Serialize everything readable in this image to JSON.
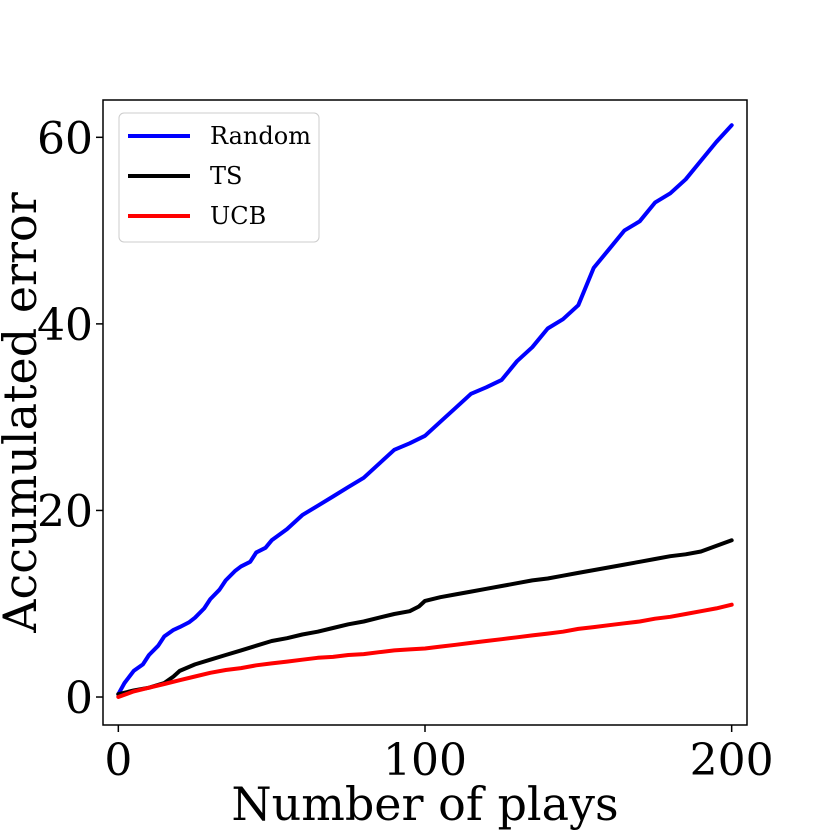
{
  "chart_data": {
    "type": "line",
    "xlabel": "Number of plays",
    "ylabel": "Accumulated error",
    "xlim": [
      -5,
      205
    ],
    "ylim": [
      -3,
      64
    ],
    "xticks": [
      0,
      100,
      200
    ],
    "yticks": [
      0,
      20,
      40,
      60
    ],
    "grid": false,
    "legend_position": "top-left",
    "series": [
      {
        "name": "Random",
        "color": "#0000ff",
        "x": [
          0,
          2,
          5,
          8,
          10,
          13,
          15,
          18,
          20,
          23,
          25,
          28,
          30,
          33,
          35,
          38,
          40,
          43,
          45,
          48,
          50,
          55,
          60,
          65,
          70,
          75,
          80,
          85,
          90,
          95,
          100,
          105,
          110,
          115,
          120,
          125,
          130,
          135,
          140,
          145,
          150,
          155,
          160,
          165,
          170,
          175,
          180,
          185,
          190,
          195,
          200
        ],
        "y": [
          0.3,
          1.5,
          2.8,
          3.5,
          4.5,
          5.5,
          6.5,
          7.2,
          7.5,
          8.0,
          8.5,
          9.5,
          10.5,
          11.5,
          12.5,
          13.5,
          14.0,
          14.5,
          15.5,
          16.0,
          16.8,
          18.0,
          19.5,
          20.5,
          21.5,
          22.5,
          23.5,
          25.0,
          26.5,
          27.2,
          28.0,
          29.5,
          31.0,
          32.5,
          33.2,
          34.0,
          36.0,
          37.5,
          39.5,
          40.5,
          42.0,
          46.0,
          48.0,
          50.0,
          51.0,
          53.0,
          54.0,
          55.5,
          57.5,
          59.5,
          61.3
        ]
      },
      {
        "name": "TS",
        "color": "#000000",
        "x": [
          0,
          5,
          10,
          15,
          18,
          20,
          25,
          30,
          35,
          40,
          45,
          50,
          55,
          60,
          65,
          70,
          75,
          80,
          85,
          90,
          95,
          98,
          100,
          105,
          110,
          115,
          120,
          125,
          130,
          135,
          140,
          145,
          150,
          155,
          160,
          165,
          170,
          175,
          180,
          185,
          190,
          195,
          200
        ],
        "y": [
          0.3,
          0.7,
          1.0,
          1.5,
          2.2,
          2.8,
          3.5,
          4.0,
          4.5,
          5.0,
          5.5,
          6.0,
          6.3,
          6.7,
          7.0,
          7.4,
          7.8,
          8.1,
          8.5,
          8.9,
          9.2,
          9.7,
          10.3,
          10.7,
          11.0,
          11.3,
          11.6,
          11.9,
          12.2,
          12.5,
          12.7,
          13.0,
          13.3,
          13.6,
          13.9,
          14.2,
          14.5,
          14.8,
          15.1,
          15.3,
          15.6,
          16.2,
          16.8
        ]
      },
      {
        "name": "UCB",
        "color": "#ff0000",
        "x": [
          0,
          5,
          10,
          15,
          20,
          25,
          30,
          35,
          40,
          45,
          50,
          55,
          60,
          65,
          70,
          75,
          80,
          85,
          90,
          95,
          100,
          105,
          110,
          115,
          120,
          125,
          130,
          135,
          140,
          145,
          150,
          155,
          160,
          165,
          170,
          175,
          180,
          185,
          190,
          195,
          200
        ],
        "y": [
          0.0,
          0.6,
          1.0,
          1.4,
          1.8,
          2.2,
          2.6,
          2.9,
          3.1,
          3.4,
          3.6,
          3.8,
          4.0,
          4.2,
          4.3,
          4.5,
          4.6,
          4.8,
          5.0,
          5.1,
          5.2,
          5.4,
          5.6,
          5.8,
          6.0,
          6.2,
          6.4,
          6.6,
          6.8,
          7.0,
          7.3,
          7.5,
          7.7,
          7.9,
          8.1,
          8.4,
          8.6,
          8.9,
          9.2,
          9.5,
          9.9
        ]
      }
    ]
  }
}
